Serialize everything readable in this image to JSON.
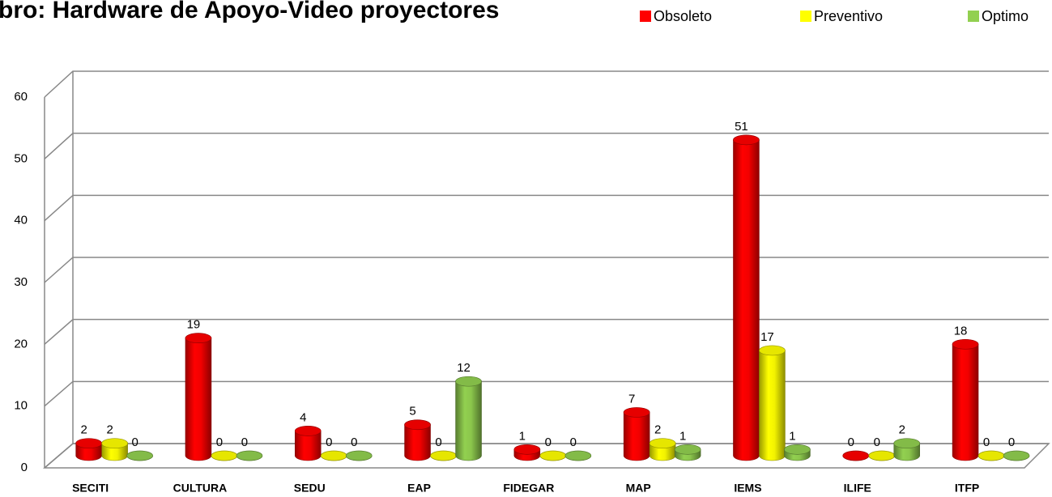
{
  "chart_data": {
    "type": "bar3d",
    "title": "bro:  Hardware de Apoyo-Video proyectores",
    "categories": [
      "SECITI",
      "CULTURA",
      "SEDU",
      "EAP",
      "FIDEGAR",
      "MAP",
      "IEMS",
      "ILIFE",
      "ITFP"
    ],
    "series": [
      {
        "name": "Obsoleto",
        "color": "#ff0000",
        "values": [
          2,
          19,
          4,
          5,
          1,
          7,
          51,
          0,
          18
        ]
      },
      {
        "name": "Preventivo",
        "color": "#ffff00",
        "values": [
          2,
          0,
          0,
          0,
          0,
          2,
          17,
          0,
          0
        ]
      },
      {
        "name": "Optimo",
        "color": "#92d050",
        "values": [
          0,
          0,
          0,
          12,
          0,
          1,
          1,
          2,
          0
        ]
      }
    ],
    "ylim": [
      0,
      60
    ],
    "yticks": [
      0,
      10,
      20,
      30,
      40,
      50,
      60
    ],
    "grid": true,
    "legend": "top-right"
  }
}
